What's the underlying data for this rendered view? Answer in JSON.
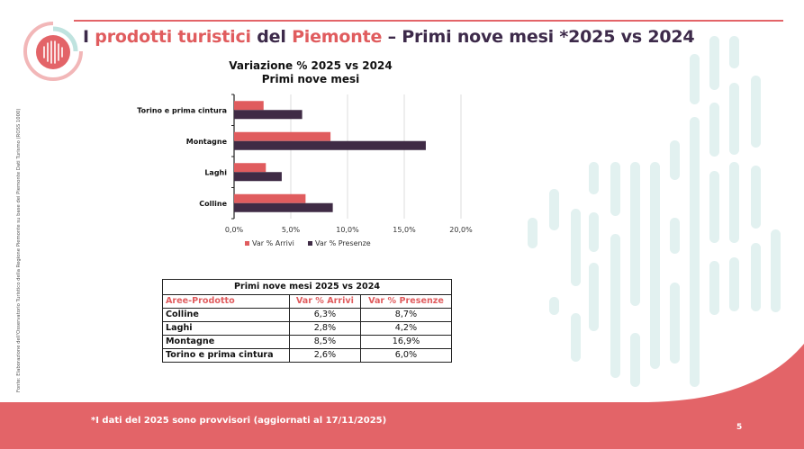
{
  "header": {
    "title_prefix": "I ",
    "title_accent1": "prodotti turistici",
    "title_middle": " del ",
    "title_accent2": "Piemonte",
    "title_suffix": " – Primi nove mesi *2025 vs 2024"
  },
  "source_note": "Fonte: Elaborazione dell'Osservatorio Turistico della Regione Piemonte su base dei Piemonte Dati Turismo (ROSS 1000)",
  "colors": {
    "accent": "#e36468",
    "dark": "#3d2a4a",
    "arrivi": "#e05c5e",
    "presenze": "#3f2b45",
    "deco": "#e2f1f0"
  },
  "chart_data": {
    "type": "bar",
    "orientation": "horizontal",
    "title": "Variazione % 2025 vs 2024",
    "subtitle": "Primi nove mesi",
    "categories": [
      "Torino e prima cintura",
      "Montagne",
      "Laghi",
      "Colline"
    ],
    "series": [
      {
        "name": "Var % Arrivi",
        "values": [
          2.6,
          8.5,
          2.8,
          6.3
        ]
      },
      {
        "name": "Var % Presenze",
        "values": [
          6.0,
          16.9,
          4.2,
          8.7
        ]
      }
    ],
    "xlim": [
      0,
      20
    ],
    "xticks": [
      "0,0%",
      "5,0%",
      "10,0%",
      "15,0%",
      "20,0%"
    ],
    "grid": true,
    "legend": "bottom"
  },
  "table": {
    "caption": "Primi nove mesi 2025 vs 2024",
    "headers": [
      "Aree-Prodotto",
      "Var % Arrivi",
      "Var % Presenze"
    ],
    "rows": [
      [
        "Colline",
        "6,3%",
        "8,7%"
      ],
      [
        "Laghi",
        "2,8%",
        "4,2%"
      ],
      [
        "Montagne",
        "8,5%",
        "16,9%"
      ],
      [
        "Torino e prima cintura",
        "2,6%",
        "6,0%"
      ]
    ]
  },
  "footer": {
    "note": "*I dati del 2025 sono provvisori (aggiornati al 17/11/2025)",
    "page_number": "5"
  }
}
